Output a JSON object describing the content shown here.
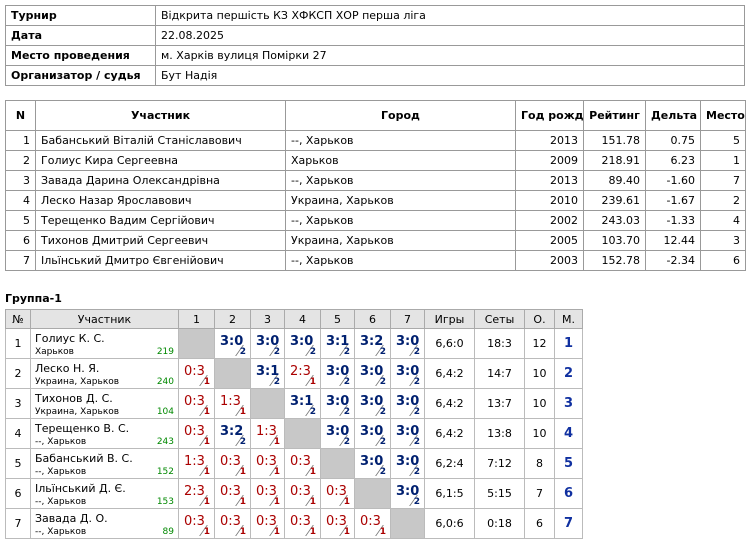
{
  "info": {
    "rows": [
      {
        "label": "Турнир",
        "value": "Відкрита першість КЗ ХФКСП ХОР перша ліга"
      },
      {
        "label": "Дата",
        "value": "22.08.2025"
      },
      {
        "label": "Место проведения",
        "value": "м. Харків вулиця Помірки 27"
      },
      {
        "label": "Организатор / судья",
        "value": "Бут Надія"
      }
    ]
  },
  "participants": {
    "header": [
      "N",
      "Участник",
      "Город",
      "Год рожд.",
      "Рейтинг",
      "Дельта",
      "Место"
    ],
    "rows": [
      [
        "1",
        "Бабанський Віталій Станіславович",
        "--, Харьков",
        "2013",
        "151.78",
        "0.75",
        "5"
      ],
      [
        "2",
        "Голиус Кира Сергеевна",
        "Харьков",
        "2009",
        "218.91",
        "6.23",
        "1"
      ],
      [
        "3",
        "Завада Дарина Олександрівна",
        "--, Харьков",
        "2013",
        "89.40",
        "-1.60",
        "7"
      ],
      [
        "4",
        "Леско Назар Ярославович",
        "Украина, Харьков",
        "2010",
        "239.61",
        "-1.67",
        "2"
      ],
      [
        "5",
        "Терещенко Вадим Сергійович",
        "--, Харьков",
        "2002",
        "243.03",
        "-1.33",
        "4"
      ],
      [
        "6",
        "Тихонов Дмитрий Сергеевич",
        "Украина, Харьков",
        "2005",
        "103.70",
        "12.44",
        "3"
      ],
      [
        "7",
        "Ільїнський Дмитро Євгенійович",
        "--, Харьков",
        "2003",
        "152.78",
        "-2.34",
        "6"
      ]
    ]
  },
  "group": {
    "title": "Группа-1",
    "header": [
      "№",
      "Участник",
      "1",
      "2",
      "3",
      "4",
      "5",
      "6",
      "7",
      "Игры",
      "Сеты",
      "О.",
      "М."
    ],
    "rows": [
      {
        "n": "1",
        "name": "Голиус К. С.",
        "city": "Харьков",
        "rating": "219",
        "games": [
          null,
          {
            "score": "3:0",
            "pts": "2"
          },
          {
            "score": "3:0",
            "pts": "2"
          },
          {
            "score": "3:0",
            "pts": "2"
          },
          {
            "score": "3:1",
            "pts": "2"
          },
          {
            "score": "3:2",
            "pts": "2"
          },
          {
            "score": "3:0",
            "pts": "2"
          }
        ],
        "igry": "6,6:0",
        "sety": "18:3",
        "o": "12",
        "m": "1"
      },
      {
        "n": "2",
        "name": "Леско Н. Я.",
        "city": "Украина, Харьков",
        "rating": "240",
        "games": [
          {
            "score": "0:3",
            "pts": "1"
          },
          null,
          {
            "score": "3:1",
            "pts": "2"
          },
          {
            "score": "2:3",
            "pts": "1"
          },
          {
            "score": "3:0",
            "pts": "2"
          },
          {
            "score": "3:0",
            "pts": "2"
          },
          {
            "score": "3:0",
            "pts": "2"
          }
        ],
        "igry": "6,4:2",
        "sety": "14:7",
        "o": "10",
        "m": "2"
      },
      {
        "n": "3",
        "name": "Тихонов Д. С.",
        "city": "Украина, Харьков",
        "rating": "104",
        "games": [
          {
            "score": "0:3",
            "pts": "1"
          },
          {
            "score": "1:3",
            "pts": "1"
          },
          null,
          {
            "score": "3:1",
            "pts": "2"
          },
          {
            "score": "3:0",
            "pts": "2"
          },
          {
            "score": "3:0",
            "pts": "2"
          },
          {
            "score": "3:0",
            "pts": "2"
          }
        ],
        "igry": "6,4:2",
        "sety": "13:7",
        "o": "10",
        "m": "3"
      },
      {
        "n": "4",
        "name": "Терещенко В. С.",
        "city": "--, Харьков",
        "rating": "243",
        "games": [
          {
            "score": "0:3",
            "pts": "1"
          },
          {
            "score": "3:2",
            "pts": "2"
          },
          {
            "score": "1:3",
            "pts": "1"
          },
          null,
          {
            "score": "3:0",
            "pts": "2"
          },
          {
            "score": "3:0",
            "pts": "2"
          },
          {
            "score": "3:0",
            "pts": "2"
          }
        ],
        "igry": "6,4:2",
        "sety": "13:8",
        "o": "10",
        "m": "4"
      },
      {
        "n": "5",
        "name": "Бабанський В. С.",
        "city": "--, Харьков",
        "rating": "152",
        "games": [
          {
            "score": "1:3",
            "pts": "1"
          },
          {
            "score": "0:3",
            "pts": "1"
          },
          {
            "score": "0:3",
            "pts": "1"
          },
          {
            "score": "0:3",
            "pts": "1"
          },
          null,
          {
            "score": "3:0",
            "pts": "2"
          },
          {
            "score": "3:0",
            "pts": "2"
          }
        ],
        "igry": "6,2:4",
        "sety": "7:12",
        "o": "8",
        "m": "5"
      },
      {
        "n": "6",
        "name": "Ільїнський Д. Є.",
        "city": "--, Харьков",
        "rating": "153",
        "games": [
          {
            "score": "2:3",
            "pts": "1"
          },
          {
            "score": "0:3",
            "pts": "1"
          },
          {
            "score": "0:3",
            "pts": "1"
          },
          {
            "score": "0:3",
            "pts": "1"
          },
          {
            "score": "0:3",
            "pts": "1"
          },
          null,
          {
            "score": "3:0",
            "pts": "2"
          }
        ],
        "igry": "6,1:5",
        "sety": "5:15",
        "o": "7",
        "m": "6"
      },
      {
        "n": "7",
        "name": "Завада Д. О.",
        "city": "--, Харьков",
        "rating": "89",
        "games": [
          {
            "score": "0:3",
            "pts": "1"
          },
          {
            "score": "0:3",
            "pts": "1"
          },
          {
            "score": "0:3",
            "pts": "1"
          },
          {
            "score": "0:3",
            "pts": "1"
          },
          {
            "score": "0:3",
            "pts": "1"
          },
          {
            "score": "0:3",
            "pts": "1"
          },
          null
        ],
        "igry": "6,0:6",
        "sety": "0:18",
        "o": "6",
        "m": "7"
      }
    ]
  }
}
